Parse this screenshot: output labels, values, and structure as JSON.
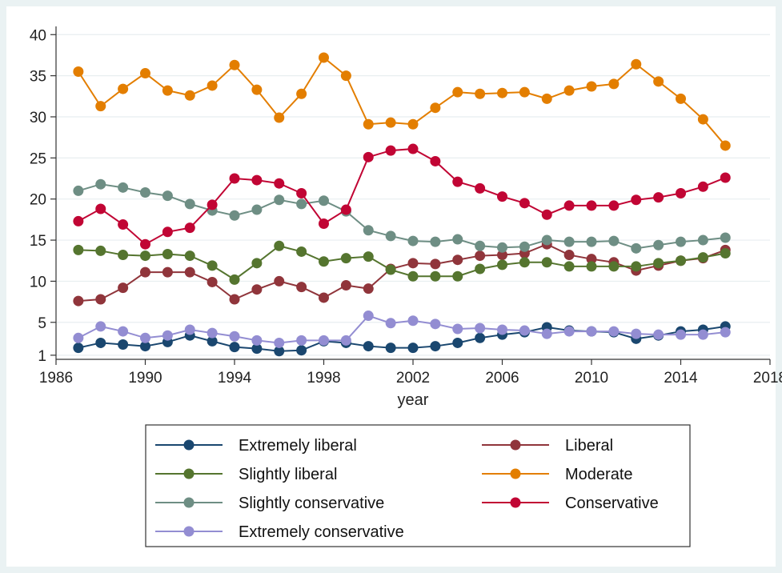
{
  "chart_data": {
    "type": "line",
    "xlabel": "year",
    "ylabel": "",
    "xlim": [
      1986,
      2018
    ],
    "ylim": [
      0.5,
      41
    ],
    "xticks": [
      1986,
      1990,
      1994,
      1998,
      2002,
      2006,
      2010,
      2014,
      2018
    ],
    "yticks": [
      1,
      5,
      10,
      15,
      20,
      25,
      30,
      35,
      40
    ],
    "grid": "horizontal",
    "legend_position": "bottom",
    "x": [
      1987,
      1988,
      1989,
      1990,
      1991,
      1992,
      1993,
      1994,
      1995,
      1996,
      1997,
      1998,
      1999,
      2000,
      2001,
      2002,
      2003,
      2004,
      2005,
      2006,
      2007,
      2008,
      2009,
      2010,
      2011,
      2012,
      2013,
      2014,
      2015,
      2016
    ],
    "series": [
      {
        "name": "Extremely liberal",
        "color": "#1a476f",
        "values": [
          1.9,
          2.5,
          2.3,
          2.1,
          2.6,
          3.4,
          2.7,
          2.0,
          1.8,
          1.5,
          1.6,
          2.7,
          2.5,
          2.1,
          1.9,
          1.9,
          2.1,
          2.5,
          3.1,
          3.5,
          3.8,
          4.4,
          4.0,
          3.9,
          3.8,
          3.0,
          3.4,
          3.9,
          4.1,
          4.5
        ]
      },
      {
        "name": "Liberal",
        "color": "#90353b",
        "values": [
          7.6,
          7.8,
          9.2,
          11.1,
          11.1,
          11.1,
          9.9,
          7.8,
          9.0,
          10.0,
          9.3,
          8.0,
          9.5,
          9.1,
          11.5,
          12.2,
          12.1,
          12.6,
          13.1,
          13.2,
          13.4,
          14.5,
          13.2,
          12.7,
          12.3,
          11.3,
          11.9,
          12.5,
          12.8,
          13.8
        ]
      },
      {
        "name": "Slightly liberal",
        "color": "#55752f",
        "values": [
          13.8,
          13.7,
          13.2,
          13.1,
          13.3,
          13.1,
          11.9,
          10.2,
          12.2,
          14.3,
          13.6,
          12.4,
          12.8,
          13.0,
          11.4,
          10.6,
          10.6,
          10.6,
          11.5,
          12.0,
          12.3,
          12.3,
          11.8,
          11.8,
          11.8,
          11.8,
          12.2,
          12.5,
          12.9,
          13.4
        ]
      },
      {
        "name": "Moderate",
        "color": "#e37e00",
        "values": [
          35.5,
          31.3,
          33.4,
          35.3,
          33.2,
          32.6,
          33.8,
          36.3,
          33.3,
          29.9,
          32.8,
          37.2,
          35.0,
          29.1,
          29.3,
          29.1,
          31.1,
          33.0,
          32.8,
          32.9,
          33.0,
          32.2,
          33.2,
          33.7,
          34.0,
          36.4,
          34.3,
          32.2,
          29.7,
          26.5
        ]
      },
      {
        "name": "Slightly conservative",
        "color": "#6e8e84",
        "values": [
          21.0,
          21.8,
          21.4,
          20.8,
          20.4,
          19.4,
          18.6,
          18.0,
          18.7,
          19.9,
          19.4,
          19.8,
          18.5,
          16.2,
          15.5,
          14.9,
          14.8,
          15.1,
          14.3,
          14.1,
          14.2,
          15.0,
          14.8,
          14.8,
          14.9,
          14.0,
          14.4,
          14.8,
          15.0,
          15.3
        ]
      },
      {
        "name": "Conservative",
        "color": "#c10534",
        "values": [
          17.3,
          18.8,
          16.9,
          14.5,
          16.0,
          16.5,
          19.3,
          22.5,
          22.3,
          21.9,
          20.7,
          17.0,
          18.7,
          25.1,
          25.9,
          26.1,
          24.6,
          22.1,
          21.3,
          20.3,
          19.5,
          18.1,
          19.2,
          19.2,
          19.2,
          19.9,
          20.2,
          20.7,
          21.5,
          22.6
        ]
      },
      {
        "name": "Extremely conservative",
        "color": "#938dd2",
        "values": [
          3.1,
          4.5,
          3.9,
          3.1,
          3.4,
          4.1,
          3.7,
          3.3,
          2.8,
          2.5,
          2.8,
          2.8,
          2.8,
          5.8,
          4.9,
          5.2,
          4.8,
          4.2,
          4.3,
          4.1,
          4.0,
          3.6,
          3.9,
          3.9,
          3.9,
          3.6,
          3.5,
          3.5,
          3.5,
          3.8
        ]
      }
    ]
  }
}
